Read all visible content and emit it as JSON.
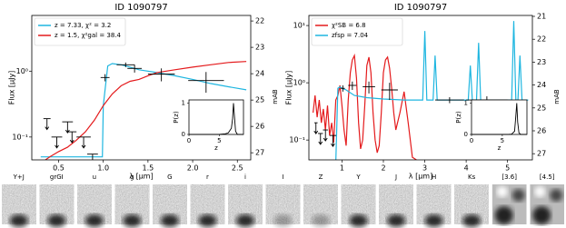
{
  "chart_data": [
    {
      "type": "sed",
      "title": "ID 1090797",
      "xlabel": "λ [μm]",
      "ylabel": "Flux [μJy]",
      "y2label": "mAB",
      "log_y": true,
      "xlim": [
        0.2,
        2.65
      ],
      "xticks": [
        0.5,
        {
          "value": 1,
          "label": "1.0"
        },
        1.5,
        {
          "value": 2,
          "label": "2.0"
        },
        2.5
      ],
      "ylim": [
        0.045,
        7
      ],
      "yticks": [
        {
          "value": 0.1,
          "label": "10⁻¹"
        },
        {
          "value": 1,
          "label": "10⁰"
        }
      ],
      "y2lim": [
        21.79,
        27.27
      ],
      "y2ticks": [
        22,
        23,
        24,
        25,
        26,
        27
      ],
      "legend": "upper left",
      "series": [
        {
          "name": "z = 7.33, χ² = 3.2",
          "color": "#1fb6e0",
          "x": [
            0.3,
            0.5,
            0.7,
            0.9,
            0.99,
            1.0,
            1.05,
            1.1,
            1.2,
            1.3,
            1.4,
            1.6,
            1.8,
            2.0,
            2.2,
            2.4,
            2.6
          ],
          "values": [
            0.05,
            0.05,
            0.05,
            0.05,
            0.05,
            0.3,
            1.2,
            1.3,
            1.25,
            1.15,
            1.05,
            0.95,
            0.85,
            0.75,
            0.65,
            0.58,
            0.52
          ]
        },
        {
          "name": "z = 1.5, χ²gal = 38.4",
          "color": "#e41a1c",
          "x": [
            0.3,
            0.4,
            0.5,
            0.6,
            0.7,
            0.8,
            0.9,
            1.0,
            1.1,
            1.2,
            1.3,
            1.4,
            1.5,
            1.6,
            1.8,
            2.0,
            2.2,
            2.4,
            2.6
          ],
          "values": [
            0.04,
            0.05,
            0.06,
            0.07,
            0.09,
            0.12,
            0.18,
            0.3,
            0.45,
            0.6,
            0.7,
            0.75,
            0.85,
            0.95,
            1.05,
            1.15,
            1.25,
            1.35,
            1.4
          ]
        }
      ],
      "points": {
        "x": [
          1.02,
          1.25,
          1.35,
          1.65,
          2.15
        ],
        "xerr": [
          0.05,
          0.1,
          0.08,
          0.15,
          0.2
        ],
        "values": [
          0.8,
          1.25,
          1.1,
          0.9,
          0.72
        ],
        "errors": [
          0.1,
          0.1,
          0.15,
          0.2,
          0.25
        ]
      },
      "upper_limits": {
        "x": [
          0.37,
          0.48,
          0.6,
          0.65,
          0.78,
          0.88
        ],
        "xerr": [
          0.04,
          0.06,
          0.06,
          0.05,
          0.08,
          0.06
        ],
        "values": [
          0.19,
          0.1,
          0.17,
          0.12,
          0.1,
          0.055
        ]
      },
      "inset": {
        "type": "line",
        "xlabel": "z",
        "ylabel": "P(z)",
        "xlim": [
          0,
          9
        ],
        "ylim": [
          0,
          1.1
        ],
        "xticks": [
          0,
          5
        ],
        "yticks": [
          0,
          1
        ],
        "x": [
          0,
          5,
          6,
          6.5,
          7,
          7.2,
          7.35,
          7.5,
          7.7,
          8,
          9
        ],
        "values": [
          0,
          0,
          0.02,
          0.05,
          0.2,
          0.5,
          1,
          0.6,
          0.1,
          0,
          0
        ]
      }
    },
    {
      "type": "sed",
      "title": "ID 1090797",
      "xlabel": "λ [μm]",
      "ylabel": "Flux [μJy]",
      "y2label": "mAB",
      "log_y": true,
      "xlim": [
        0.2,
        5.6
      ],
      "xticks": [
        1,
        2,
        3,
        4,
        5
      ],
      "ylim": [
        0.045,
        15
      ],
      "yticks": [
        {
          "value": 0.1,
          "label": "10⁻¹"
        },
        {
          "value": 1,
          "label": "10⁰"
        },
        {
          "value": 10,
          "label": "10¹"
        }
      ],
      "y2lim": [
        20.96,
        27.27
      ],
      "y2ticks": [
        21,
        22,
        23,
        24,
        25,
        26,
        27
      ],
      "legend": "upper left",
      "series": [
        {
          "name": "χ²SB = 6.8",
          "color": "#e41a1c",
          "x": [
            0.3,
            0.35,
            0.4,
            0.45,
            0.5,
            0.55,
            0.6,
            0.65,
            0.7,
            0.75,
            0.8,
            0.85,
            0.9,
            0.95,
            1.0,
            1.05,
            1.1,
            1.15,
            1.2,
            1.25,
            1.3,
            1.35,
            1.4,
            1.45,
            1.5,
            1.55,
            1.6,
            1.65,
            1.7,
            1.75,
            1.8,
            1.85,
            1.9,
            1.95,
            2.0,
            2.05,
            2.1,
            2.15,
            2.2,
            2.25,
            2.3,
            2.4,
            2.5,
            2.6,
            2.7,
            2.8
          ],
          "values": [
            0.3,
            0.6,
            0.25,
            0.5,
            0.2,
            0.35,
            0.15,
            0.4,
            0.12,
            0.2,
            0.09,
            0.5,
            0.6,
            0.9,
            0.4,
            0.15,
            0.08,
            0.5,
            1.5,
            2.5,
            3,
            1.2,
            0.2,
            0.07,
            0.1,
            0.4,
            2,
            2.8,
            1.5,
            0.3,
            0.1,
            0.06,
            0.08,
            0.3,
            1.5,
            2.5,
            2.8,
            1.8,
            0.8,
            0.3,
            0.15,
            0.3,
            0.7,
            0.2,
            0.05,
            0.045
          ]
        },
        {
          "name": "zfsp = 7.04",
          "color": "#1fb6e0",
          "x": [
            0.3,
            0.85,
            0.9,
            0.95,
            1.0,
            1.1,
            1.3,
            1.6,
            2.0,
            2.5,
            2.95,
            3.0,
            3.05,
            3.2,
            3.25,
            3.3,
            3.35,
            3.6,
            4.05,
            4.1,
            4.15,
            4.25,
            4.3,
            4.35,
            4.6,
            5.05,
            5.1,
            5.15,
            5.2,
            5.25,
            5.3,
            5.35,
            5.5
          ],
          "values": [
            0.04,
            0.04,
            0.8,
            0.85,
            0.8,
            0.75,
            0.6,
            0.55,
            0.52,
            0.5,
            0.5,
            8,
            0.5,
            0.5,
            3,
            0.5,
            0.5,
            0.5,
            0.5,
            2,
            0.5,
            0.5,
            5,
            0.5,
            0.5,
            0.5,
            0.5,
            12,
            0.5,
            0.5,
            3,
            0.5,
            0.5
          ]
        }
      ],
      "points": {
        "x": [
          1.02,
          1.25,
          1.65,
          2.15,
          3.6,
          4.5
        ],
        "xerr": [
          0.05,
          0.1,
          0.15,
          0.2,
          0.35,
          0.5
        ],
        "values": [
          0.8,
          0.9,
          0.85,
          0.75,
          0.5,
          0.5
        ],
        "errors": [
          0.1,
          0.15,
          0.2,
          0.25,
          0.06,
          0.08
        ]
      },
      "upper_limits": {
        "x": [
          0.37,
          0.48,
          0.6,
          0.78
        ],
        "xerr": [
          0.04,
          0.06,
          0.06,
          0.08
        ],
        "values": [
          0.2,
          0.13,
          0.15,
          0.12
        ]
      },
      "inset": {
        "type": "line",
        "xlabel": "z",
        "ylabel": "P(z)",
        "xlim": [
          0,
          9
        ],
        "ylim": [
          0,
          1.1
        ],
        "xticks": [
          0,
          5
        ],
        "yticks": [
          0,
          1
        ],
        "x": [
          0,
          5,
          6,
          6.5,
          7,
          7.2,
          7.35,
          7.5,
          7.7,
          8,
          9
        ],
        "values": [
          0,
          0,
          0,
          0.01,
          0.1,
          0.6,
          1,
          0.4,
          0.05,
          0,
          0
        ]
      }
    }
  ],
  "cutouts": [
    "Y+J",
    "grGI",
    "u",
    "g",
    "G",
    "r",
    "i",
    "I",
    "Z",
    "Y",
    "J",
    "H",
    "Ks",
    "[3.6]",
    "[4.5]"
  ]
}
